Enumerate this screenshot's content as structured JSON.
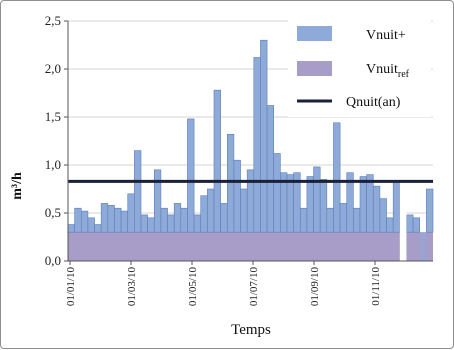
{
  "chart_data": {
    "type": "bar",
    "ylabel": "m³/h",
    "xlabel": "Temps",
    "ylim": [
      0,
      2.5
    ],
    "yticks": [
      "0,0",
      "0,5",
      "1,0",
      "1,5",
      "2,0",
      "2,5"
    ],
    "xticks": [
      "01/01/10",
      "01/03/10",
      "01/05/10",
      "01/07/10",
      "01/09/10",
      "01/11/10"
    ],
    "grid": true,
    "legend_position": "top-right",
    "legend": {
      "vnuit_plus": "Vnuit+",
      "vnuit_ref_base": "Vnuit",
      "vnuit_ref_sub": "ref",
      "qnuit": "Qnuit(an)"
    },
    "colors": {
      "vnuit_plus": "#8eaad8",
      "vnuit_ref": "#a89cc8",
      "qnuit": "#1a1f3a",
      "edge": "#5b7fb8"
    },
    "series": [
      {
        "name": "Vnuit+",
        "kind": "bar",
        "values": [
          0.38,
          0.55,
          0.52,
          0.45,
          0.38,
          0.6,
          0.58,
          0.55,
          0.52,
          0.7,
          1.15,
          0.48,
          0.45,
          0.95,
          0.55,
          0.48,
          0.6,
          0.55,
          1.48,
          0.48,
          0.68,
          0.75,
          1.78,
          0.6,
          1.32,
          1.05,
          0.75,
          0.95,
          2.12,
          2.3,
          1.62,
          1.12,
          0.92,
          0.9,
          0.92,
          0.55,
          0.88,
          0.98,
          0.85,
          0.55,
          1.44,
          0.6,
          0.92,
          0.55,
          0.88,
          0.9,
          0.78,
          0.65,
          0.45,
          0.82,
          0.0,
          0.48,
          0.45,
          0.3,
          0.75
        ]
      },
      {
        "name": "Vnuit_ref",
        "kind": "area",
        "value": 0.3
      },
      {
        "name": "Qnuit(an)",
        "kind": "line",
        "value": 0.83
      }
    ]
  }
}
